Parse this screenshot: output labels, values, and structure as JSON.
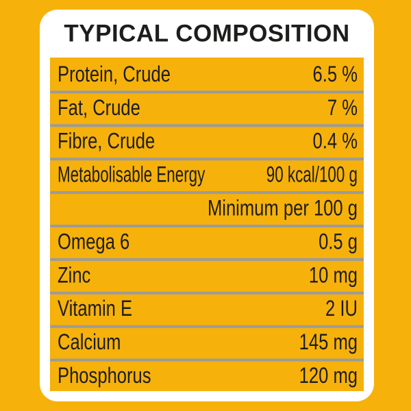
{
  "title": "TYPICAL COMPOSITION",
  "rows": [
    {
      "label": "Protein, Crude",
      "value": "6.5 %"
    },
    {
      "label": "Fat, Crude",
      "value": "7 %"
    },
    {
      "label": "Fibre, Crude",
      "value": "0.4 %"
    },
    {
      "label": "Metabolisable Energy",
      "value": "90 kcal/100 g"
    },
    {
      "value": "Minimum per 100 g"
    },
    {
      "label": "Omega 6",
      "value": "0.5 g"
    },
    {
      "label": "Zinc",
      "value": "10 mg"
    },
    {
      "label": "Vitamin E",
      "value": "2 IU"
    },
    {
      "label": "Calcium",
      "value": "145 mg"
    },
    {
      "label": "Phosphorus",
      "value": "120 mg"
    }
  ]
}
